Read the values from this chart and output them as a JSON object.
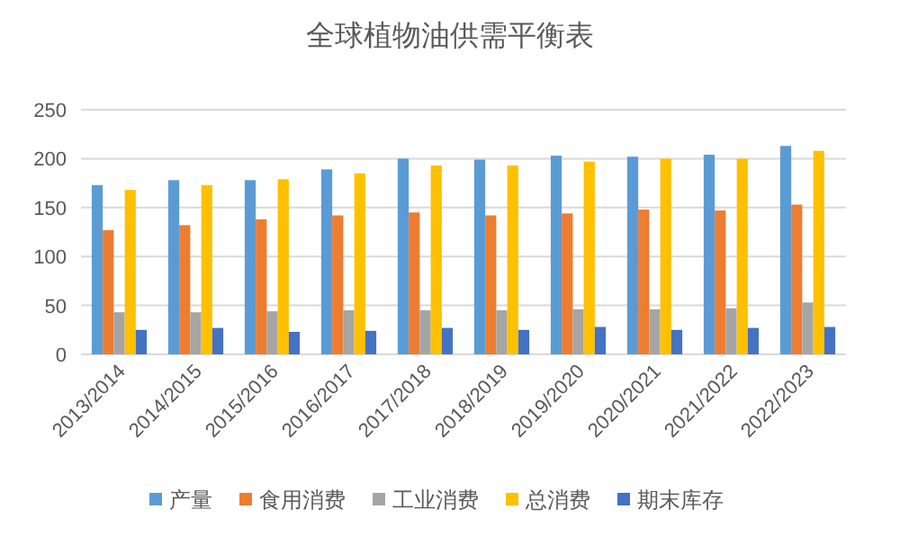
{
  "chart_data": {
    "type": "bar",
    "title": "全球植物油供需平衡表",
    "categories": [
      "2013/2014",
      "2014/2015",
      "2015/2016",
      "2016/2017",
      "2017/2018",
      "2018/2019",
      "2019/2020",
      "2020/2021",
      "2021/2022",
      "2022/2023"
    ],
    "series": [
      {
        "name": "产量",
        "color": "#5b9bd5",
        "values": [
          173,
          178,
          178,
          189,
          200,
          199,
          203,
          202,
          204,
          213
        ]
      },
      {
        "name": "食用消费",
        "color": "#ed7d31",
        "values": [
          127,
          132,
          138,
          142,
          145,
          142,
          144,
          148,
          147,
          153
        ]
      },
      {
        "name": "工业消费",
        "color": "#a5a5a5",
        "values": [
          43,
          43,
          44,
          45,
          45,
          45,
          46,
          46,
          47,
          53
        ]
      },
      {
        "name": "总消费",
        "color": "#ffc000",
        "values": [
          168,
          173,
          179,
          185,
          193,
          193,
          197,
          200,
          200,
          208
        ]
      },
      {
        "name": "期末库存",
        "color": "#4472c4",
        "values": [
          25,
          27,
          23,
          24,
          27,
          25,
          28,
          25,
          27,
          28
        ]
      }
    ],
    "ylim": [
      0,
      250
    ],
    "yticks": [
      0,
      50,
      100,
      150,
      200,
      250
    ],
    "grid": "y",
    "legend": "bottom"
  }
}
